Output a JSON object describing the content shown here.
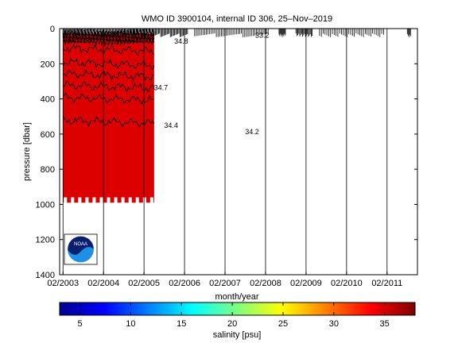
{
  "chart_data": [
    {
      "type": "heatmap",
      "title": "WMO ID 3900104, internal ID 306, 25–Nov–2019",
      "xlabel": "month/year",
      "ylabel": "pressure [dbar]",
      "x_ticks": [
        "02/2003",
        "02/2004",
        "02/2005",
        "02/2006",
        "02/2007",
        "02/2008",
        "02/2009",
        "02/2010",
        "02/2011"
      ],
      "xlim": [
        "2003-01",
        "2011-11"
      ],
      "y_ticks": [
        0,
        200,
        400,
        600,
        800,
        1000,
        1200,
        1400
      ],
      "ylim": [
        1400,
        0
      ],
      "y_reversed": true,
      "grid": "vertical lines at each x tick",
      "profiles_span": [
        "2003-02",
        "2005-05"
      ],
      "profiles_max_pressure": 990,
      "fill_color": "#dd0000",
      "contours": [
        {
          "label": "34.8",
          "date": "2006-01",
          "pressure": 85
        },
        {
          "label": "33.2",
          "date": "2008-01",
          "pressure": 52
        },
        {
          "label": "34.7",
          "date": "2005-07",
          "pressure": 350
        },
        {
          "label": "34.4",
          "date": "2005-10",
          "pressure": 565
        },
        {
          "label": "34.2",
          "date": "2007-10",
          "pressure": 600
        }
      ],
      "contour_levels_pressure": [
        120,
        200,
        265,
        330,
        400,
        530
      ],
      "surface_ticks": "dense vertical ticks near the surface marking profile positions along the time axis"
    },
    {
      "type": "colorbar",
      "label": "salinity [psu]",
      "range": [
        3,
        38
      ],
      "ticks": [
        5,
        10,
        15,
        20,
        25,
        30,
        35
      ],
      "colormap": "jet"
    }
  ],
  "logo": {
    "text": "NOAA",
    "name": "noaa-logo"
  }
}
